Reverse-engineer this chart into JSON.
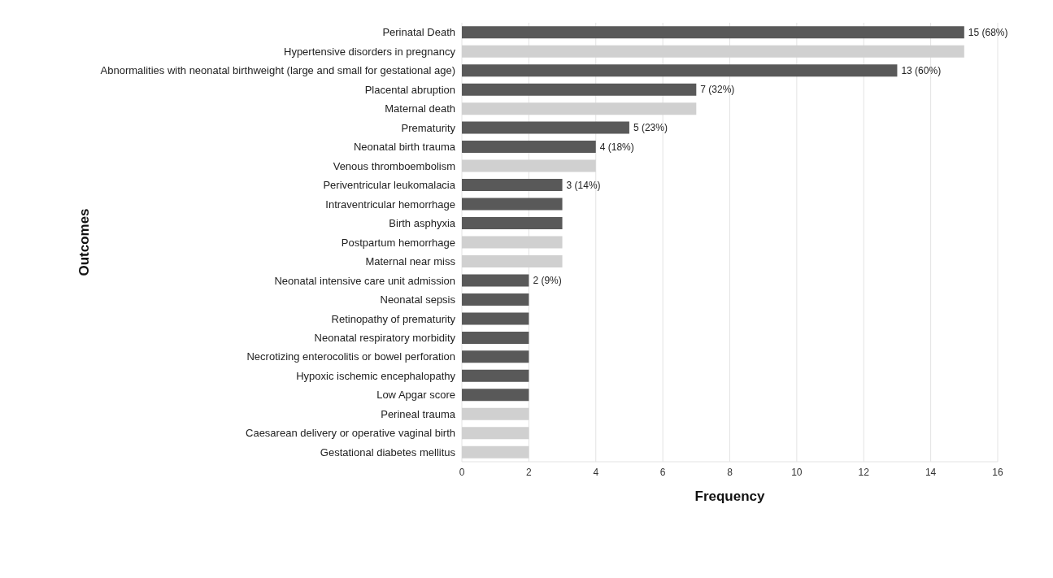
{
  "chart_data": {
    "type": "bar",
    "orientation": "horizontal",
    "xlabel": "Frequency",
    "ylabel": "Outcomes",
    "categories": [
      "Perinatal Death",
      "Hypertensive disorders in pregnancy",
      "Abnormalities with neonatal birthweight (large and small for gestational age)",
      "Placental abruption",
      "Maternal death",
      "Prematurity",
      "Neonatal birth trauma",
      "Venous thromboembolism",
      "Periventricular leukomalacia",
      "Intraventricular hemorrhage",
      "Birth asphyxia",
      "Postpartum hemorrhage",
      "Maternal near miss",
      "Neonatal intensive care unit admission",
      "Neonatal sepsis",
      "Retinopathy of prematurity",
      "Neonatal respiratory morbidity",
      "Necrotizing enterocolitis or bowel perforation",
      "Hypoxic ischemic encephalopathy",
      "Low Apgar score",
      "Perineal trauma",
      "Caesarean delivery or operative vaginal birth",
      "Gestational diabetes mellitus"
    ],
    "values": [
      15,
      15,
      13,
      7,
      7,
      5,
      4,
      4,
      3,
      3,
      3,
      3,
      3,
      2,
      2,
      2,
      2,
      2,
      2,
      2,
      2,
      2,
      2
    ],
    "colors": [
      "#595959",
      "#d0d0d0",
      "#595959",
      "#595959",
      "#d0d0d0",
      "#595959",
      "#595959",
      "#d0d0d0",
      "#595959",
      "#595959",
      "#595959",
      "#d0d0d0",
      "#d0d0d0",
      "#595959",
      "#595959",
      "#595959",
      "#595959",
      "#595959",
      "#595959",
      "#595959",
      "#d0d0d0",
      "#d0d0d0",
      "#d0d0d0"
    ],
    "value_labels": [
      "15 (68%)",
      null,
      "13 (60%)",
      "7 (32%)",
      null,
      "5 (23%)",
      "4 (18%)",
      null,
      "3 (14%)",
      null,
      null,
      null,
      null,
      "2 (9%)",
      null,
      null,
      null,
      null,
      null,
      null,
      null,
      null,
      null
    ],
    "xlim": [
      0,
      16
    ],
    "xticks": [
      0,
      2,
      4,
      6,
      8,
      10,
      12,
      14,
      16
    ],
    "grid": "x"
  }
}
